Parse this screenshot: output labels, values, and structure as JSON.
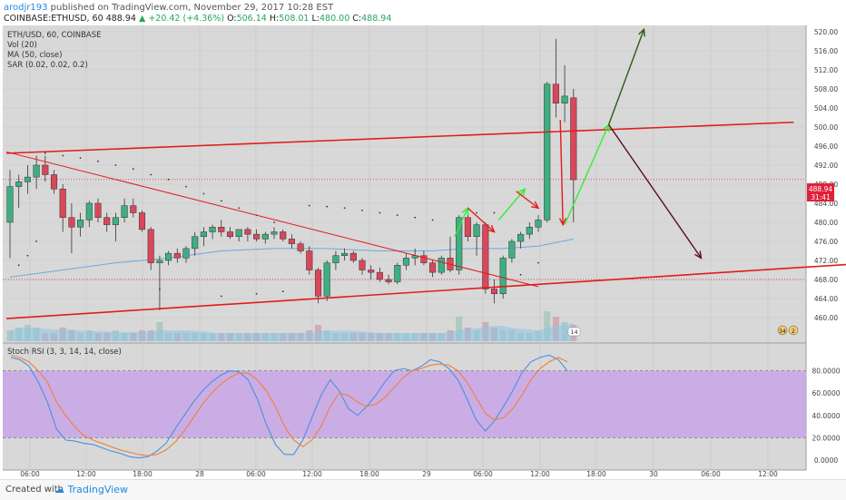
{
  "header": {
    "author": "arodjr193",
    "published_text": "published on TradingView.com, November 29, 2017 10:28 EST",
    "symbol": "COINBASE:ETHUSD, 60",
    "last": "488.94",
    "change_arrow": "▲",
    "change": "+20.42 (+4.36%)",
    "o_label": "O:",
    "o_value": "506.14",
    "h_label": "H:",
    "h_value": "508.01",
    "l_label": "L:",
    "l_value": "480.00",
    "c_label": "C:",
    "c_value": "488.94"
  },
  "legend": {
    "symbol_line": "ETH/USD, 60, COINBASE",
    "vol": "Vol (20)",
    "ma": "MA (50, close)",
    "sar": "SAR (0.02, 0.02, 0.2)"
  },
  "stoch_legend": "Stoch RSI (3, 3, 14, 14, close)",
  "price_marker": {
    "value": "488.94",
    "countdown": "31:41",
    "color": "#e0213a"
  },
  "badge_14": "14",
  "badge_34": "34",
  "badge_2": "2",
  "footer": {
    "created_with": "Created with",
    "brand": "TradingView"
  },
  "colors": {
    "bull": "#3fae82",
    "bear": "#d9475a",
    "trendline": "#e21b1b",
    "arrow_green": "#33ee33",
    "arrow_red": "#e21b1b",
    "arrow_up_dark": "#2f5a12",
    "arrow_down_dark": "#5a0d1a",
    "ma": "#6fa8dc",
    "stoch_k": "#4a90e2",
    "stoch_d": "#f07f3c",
    "stoch_band": "#c9a6e8",
    "panel_bg": "#d8d8d8"
  },
  "chart_data": [
    {
      "type": "candlestick",
      "title": "ETH/USD, 60, COINBASE",
      "ylim": [
        458,
        522
      ],
      "y_ticks": [
        "520.00",
        "516.00",
        "512.00",
        "508.00",
        "504.00",
        "500.00",
        "496.00",
        "492.00",
        "488.00",
        "484.00",
        "480.00",
        "476.00",
        "472.00",
        "468.00",
        "464.00",
        "460.00"
      ],
      "x_ticks": [
        "06:00",
        "12:00",
        "18:00",
        "28",
        "06:00",
        "12:00",
        "18:00",
        "29",
        "06:00",
        "12:00",
        "18:00",
        "30",
        "06:00",
        "12:00"
      ],
      "candles": [
        {
          "o": 480.0,
          "h": 491.0,
          "l": 472.5,
          "c": 487.5
        },
        {
          "o": 487.5,
          "h": 490.0,
          "l": 483.0,
          "c": 488.5
        },
        {
          "o": 488.5,
          "h": 492.0,
          "l": 486.0,
          "c": 489.5
        },
        {
          "o": 489.5,
          "h": 494.0,
          "l": 487.0,
          "c": 492.0
        },
        {
          "o": 492.0,
          "h": 494.0,
          "l": 488.5,
          "c": 490.0
        },
        {
          "o": 490.0,
          "h": 491.0,
          "l": 486.0,
          "c": 487.0
        },
        {
          "o": 487.0,
          "h": 488.0,
          "l": 478.0,
          "c": 481.0
        },
        {
          "o": 481.0,
          "h": 484.0,
          "l": 473.5,
          "c": 479.0
        },
        {
          "o": 479.0,
          "h": 482.0,
          "l": 477.0,
          "c": 480.5
        },
        {
          "o": 480.5,
          "h": 484.5,
          "l": 479.0,
          "c": 484.0
        },
        {
          "o": 484.0,
          "h": 485.0,
          "l": 480.0,
          "c": 481.0
        },
        {
          "o": 481.0,
          "h": 482.0,
          "l": 478.0,
          "c": 479.5
        },
        {
          "o": 479.5,
          "h": 482.0,
          "l": 476.0,
          "c": 481.0
        },
        {
          "o": 481.0,
          "h": 485.0,
          "l": 480.0,
          "c": 483.5
        },
        {
          "o": 483.5,
          "h": 485.0,
          "l": 481.0,
          "c": 482.0
        },
        {
          "o": 482.0,
          "h": 482.5,
          "l": 478.0,
          "c": 478.5
        },
        {
          "o": 478.5,
          "h": 479.0,
          "l": 470.0,
          "c": 471.5
        },
        {
          "o": 471.5,
          "h": 473.0,
          "l": 461.5,
          "c": 472.0
        },
        {
          "o": 472.0,
          "h": 474.0,
          "l": 471.0,
          "c": 473.5
        },
        {
          "o": 473.5,
          "h": 474.5,
          "l": 471.5,
          "c": 472.5
        },
        {
          "o": 472.5,
          "h": 475.0,
          "l": 471.5,
          "c": 474.5
        },
        {
          "o": 474.5,
          "h": 478.0,
          "l": 473.0,
          "c": 477.0
        },
        {
          "o": 477.0,
          "h": 479.0,
          "l": 475.0,
          "c": 478.0
        },
        {
          "o": 478.0,
          "h": 479.5,
          "l": 476.5,
          "c": 479.0
        },
        {
          "o": 479.0,
          "h": 480.5,
          "l": 477.0,
          "c": 478.0
        },
        {
          "o": 478.0,
          "h": 479.0,
          "l": 476.5,
          "c": 477.0
        },
        {
          "o": 477.0,
          "h": 478.5,
          "l": 476.0,
          "c": 478.5
        },
        {
          "o": 478.5,
          "h": 479.0,
          "l": 476.0,
          "c": 477.5
        },
        {
          "o": 477.5,
          "h": 478.5,
          "l": 476.0,
          "c": 476.5
        },
        {
          "o": 476.5,
          "h": 478.0,
          "l": 475.5,
          "c": 477.5
        },
        {
          "o": 477.5,
          "h": 479.0,
          "l": 476.5,
          "c": 478.0
        },
        {
          "o": 478.0,
          "h": 478.5,
          "l": 476.0,
          "c": 476.5
        },
        {
          "o": 476.5,
          "h": 477.5,
          "l": 474.5,
          "c": 475.5
        },
        {
          "o": 475.5,
          "h": 476.0,
          "l": 473.5,
          "c": 474.0
        },
        {
          "o": 474.0,
          "h": 475.0,
          "l": 469.0,
          "c": 470.0
        },
        {
          "o": 470.0,
          "h": 470.5,
          "l": 463.0,
          "c": 464.5
        },
        {
          "o": 464.5,
          "h": 472.0,
          "l": 463.5,
          "c": 471.5
        },
        {
          "o": 471.5,
          "h": 474.0,
          "l": 470.0,
          "c": 473.0
        },
        {
          "o": 473.0,
          "h": 474.5,
          "l": 472.0,
          "c": 473.5
        },
        {
          "o": 473.5,
          "h": 474.0,
          "l": 471.5,
          "c": 472.0
        },
        {
          "o": 472.0,
          "h": 472.5,
          "l": 469.0,
          "c": 470.0
        },
        {
          "o": 470.0,
          "h": 471.0,
          "l": 468.0,
          "c": 469.5
        },
        {
          "o": 469.5,
          "h": 470.5,
          "l": 467.5,
          "c": 468.0
        },
        {
          "o": 468.0,
          "h": 469.0,
          "l": 467.0,
          "c": 467.5
        },
        {
          "o": 467.5,
          "h": 471.5,
          "l": 467.0,
          "c": 471.0
        },
        {
          "o": 471.0,
          "h": 473.5,
          "l": 470.0,
          "c": 472.5
        },
        {
          "o": 472.5,
          "h": 474.5,
          "l": 471.0,
          "c": 473.0
        },
        {
          "o": 473.0,
          "h": 474.0,
          "l": 471.0,
          "c": 471.5
        },
        {
          "o": 471.5,
          "h": 472.0,
          "l": 468.5,
          "c": 469.5
        },
        {
          "o": 469.5,
          "h": 473.0,
          "l": 469.0,
          "c": 472.5
        },
        {
          "o": 472.5,
          "h": 477.0,
          "l": 469.5,
          "c": 470.0
        },
        {
          "o": 470.0,
          "h": 481.5,
          "l": 469.0,
          "c": 481.0
        },
        {
          "o": 481.0,
          "h": 482.0,
          "l": 476.0,
          "c": 477.0
        },
        {
          "o": 477.0,
          "h": 480.0,
          "l": 473.0,
          "c": 479.5
        },
        {
          "o": 479.5,
          "h": 480.0,
          "l": 465.0,
          "c": 466.0
        },
        {
          "o": 466.0,
          "h": 468.0,
          "l": 463.0,
          "c": 465.0
        },
        {
          "o": 465.0,
          "h": 473.0,
          "l": 464.0,
          "c": 472.5
        },
        {
          "o": 472.5,
          "h": 476.5,
          "l": 471.5,
          "c": 476.0
        },
        {
          "o": 476.0,
          "h": 478.0,
          "l": 474.5,
          "c": 477.5
        },
        {
          "o": 477.5,
          "h": 480.0,
          "l": 476.5,
          "c": 479.0
        },
        {
          "o": 479.0,
          "h": 481.5,
          "l": 478.0,
          "c": 480.5
        },
        {
          "o": 480.5,
          "h": 509.5,
          "l": 480.0,
          "c": 509.0
        },
        {
          "o": 509.0,
          "h": 518.5,
          "l": 502.0,
          "c": 505.0
        },
        {
          "o": 505.0,
          "h": 513.0,
          "l": 501.0,
          "c": 506.5
        },
        {
          "o": 506.14,
          "h": 508.01,
          "l": 480.0,
          "c": 488.94
        }
      ],
      "ma_50": [
        {
          "i": 0,
          "v": 468.5
        },
        {
          "i": 6,
          "v": 470.0
        },
        {
          "i": 12,
          "v": 471.5
        },
        {
          "i": 18,
          "v": 472.5
        },
        {
          "i": 24,
          "v": 474.0
        },
        {
          "i": 30,
          "v": 474.5
        },
        {
          "i": 36,
          "v": 474.5
        },
        {
          "i": 42,
          "v": 474.0
        },
        {
          "i": 48,
          "v": 474.0
        },
        {
          "i": 52,
          "v": 474.5
        },
        {
          "i": 56,
          "v": 474.5
        },
        {
          "i": 60,
          "v": 475.0
        },
        {
          "i": 64,
          "v": 476.5
        }
      ],
      "sar_points": [
        {
          "i": 4,
          "v": 494.5
        },
        {
          "i": 6,
          "v": 494.0
        },
        {
          "i": 8,
          "v": 493.5
        },
        {
          "i": 10,
          "v": 492.8
        },
        {
          "i": 12,
          "v": 492.0
        },
        {
          "i": 14,
          "v": 491.2
        },
        {
          "i": 16,
          "v": 490.0
        },
        {
          "i": 18,
          "v": 489.0
        },
        {
          "i": 20,
          "v": 487.5
        },
        {
          "i": 22,
          "v": 486.0
        },
        {
          "i": 24,
          "v": 484.5
        },
        {
          "i": 26,
          "v": 483.0
        },
        {
          "i": 28,
          "v": 481.5
        },
        {
          "i": 30,
          "v": 480.0
        },
        {
          "i": 34,
          "v": 483.5
        },
        {
          "i": 36,
          "v": 483.3
        },
        {
          "i": 38,
          "v": 483.0
        },
        {
          "i": 40,
          "v": 482.5
        },
        {
          "i": 42,
          "v": 482.0
        },
        {
          "i": 44,
          "v": 481.5
        },
        {
          "i": 46,
          "v": 481.0
        },
        {
          "i": 48,
          "v": 480.5
        },
        {
          "i": 53,
          "v": 482.0
        },
        {
          "i": 55,
          "v": 482.0
        },
        {
          "i": 56,
          "v": 466.5
        },
        {
          "i": 58,
          "v": 469.0
        },
        {
          "i": 60,
          "v": 471.5
        },
        {
          "i": 1,
          "v": 471.0
        },
        {
          "i": 2,
          "v": 473.0
        },
        {
          "i": 3,
          "v": 476.0
        },
        {
          "i": 17,
          "v": 466.0
        },
        {
          "i": 24,
          "v": 464.5
        },
        {
          "i": 28,
          "v": 465.0
        },
        {
          "i": 31,
          "v": 465.5
        }
      ],
      "volume": [
        4,
        5,
        6,
        5,
        3,
        3,
        5,
        4,
        3,
        4,
        3,
        3,
        4,
        3,
        3,
        4,
        4,
        7,
        3,
        3,
        3,
        3,
        3,
        3,
        3,
        3,
        3,
        3,
        3,
        3,
        3,
        3,
        3,
        3,
        4,
        6,
        4,
        3,
        3,
        3,
        3,
        3,
        3,
        3,
        3,
        3,
        3,
        3,
        3,
        3,
        4,
        9,
        5,
        4,
        7,
        5,
        4,
        4,
        3,
        3,
        4,
        11,
        9,
        7,
        6
      ],
      "horizontal_levels": [
        468.0,
        489.0
      ],
      "trendlines": [
        {
          "name": "upper-channel",
          "from": {
            "i": -0.4,
            "v": 494.5
          },
          "to": {
            "i": 89,
            "v": 501.0
          }
        },
        {
          "name": "lower-channel",
          "from": {
            "i": -0.4,
            "v": 459.8
          },
          "to": {
            "i": 98,
            "v": 471.5
          }
        },
        {
          "name": "descending",
          "from": {
            "i": -0.4,
            "v": 494.8
          },
          "to": {
            "i": 60,
            "v": 466.5
          }
        }
      ],
      "arrows": [
        {
          "color": "green",
          "from": {
            "i": 50.5,
            "v": 477.0
          },
          "to": {
            "i": 52,
            "v": 483.0
          }
        },
        {
          "color": "red",
          "from": {
            "i": 52,
            "v": 483.0
          },
          "to": {
            "i": 55,
            "v": 478.0
          }
        },
        {
          "color": "green",
          "from": {
            "i": 55.5,
            "v": 480.5
          },
          "to": {
            "i": 58.5,
            "v": 487.0
          }
        },
        {
          "color": "red",
          "from": {
            "i": 57.5,
            "v": 486.5
          },
          "to": {
            "i": 60,
            "v": 483.0
          }
        },
        {
          "color": "red",
          "from": {
            "i": 62.5,
            "v": 501.5
          },
          "to": {
            "i": 62.8,
            "v": 479.5
          }
        },
        {
          "color": "green",
          "from": {
            "i": 63,
            "v": 479.5
          },
          "to": {
            "i": 68,
            "v": 500.5
          }
        },
        {
          "color": "up_dark",
          "from": {
            "i": 68,
            "v": 500.5
          },
          "to": {
            "i": 72,
            "v": 520.5
          }
        },
        {
          "color": "down_dark",
          "from": {
            "i": 68,
            "v": 500.5
          },
          "to": {
            "i": 78.5,
            "v": 472.5
          }
        }
      ]
    },
    {
      "type": "line",
      "title": "Stoch RSI (3, 3, 14, 14, close)",
      "ylim": [
        -5,
        100
      ],
      "y_ticks": [
        "80.0000",
        "60.0000",
        "40.0000",
        "20.0000",
        "0.0000"
      ],
      "band": [
        20,
        80
      ],
      "series": [
        {
          "name": "K",
          "values": [
            92,
            90,
            84,
            70,
            52,
            28,
            18,
            17,
            15,
            14,
            11,
            8,
            6,
            3,
            2,
            3,
            8,
            15,
            28,
            40,
            52,
            62,
            70,
            76,
            80,
            79,
            72,
            55,
            32,
            14,
            5,
            5,
            18,
            38,
            58,
            72,
            62,
            46,
            40,
            48,
            58,
            70,
            80,
            82,
            80,
            84,
            90,
            88,
            82,
            72,
            55,
            36,
            26,
            35,
            48,
            62,
            78,
            88,
            92,
            94,
            90,
            80
          ]
        },
        {
          "name": "D",
          "values": [
            94,
            92,
            88,
            80,
            70,
            52,
            40,
            30,
            22,
            18,
            15,
            12,
            9,
            7,
            5,
            4,
            5,
            9,
            16,
            26,
            38,
            50,
            60,
            68,
            74,
            78,
            78,
            72,
            62,
            48,
            30,
            18,
            12,
            18,
            30,
            48,
            60,
            58,
            52,
            48,
            50,
            56,
            65,
            74,
            80,
            82,
            85,
            86,
            85,
            80,
            70,
            56,
            42,
            36,
            38,
            46,
            58,
            72,
            82,
            88,
            92,
            88
          ]
        }
      ]
    }
  ]
}
